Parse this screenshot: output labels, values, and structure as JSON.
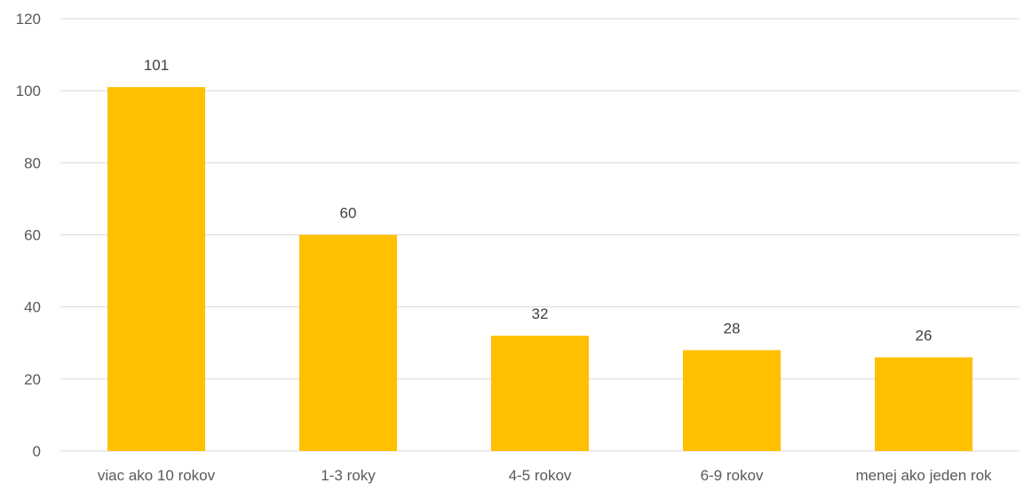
{
  "chart_data": {
    "type": "bar",
    "title": "",
    "xlabel": "",
    "ylabel": "",
    "categories": [
      "viac ako 10 rokov",
      "1-3 roky",
      "4-5 rokov",
      "6-9 rokov",
      "menej ako jeden rok"
    ],
    "values": [
      101,
      60,
      32,
      28,
      26
    ],
    "ylim": [
      0,
      120
    ],
    "yticks": [
      "0",
      "20",
      "40",
      "60",
      "80",
      "100",
      "120"
    ],
    "data_labels": [
      "101",
      "60",
      "32",
      "28",
      "26"
    ],
    "grid": true,
    "legend": "none",
    "colors": {
      "bar": "#FFC000",
      "grid": "#D9D9D9",
      "axis_text": "#595959",
      "label_text": "#404040"
    }
  }
}
